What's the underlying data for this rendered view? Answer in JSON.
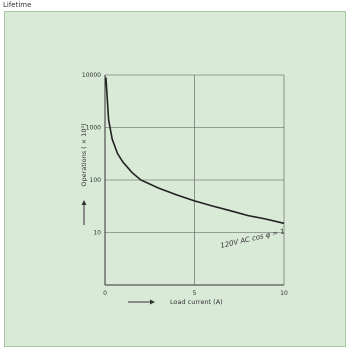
{
  "header": {
    "corner_label": "Lifetime"
  },
  "chart_data": {
    "type": "line",
    "xlabel": "Load current  (A)",
    "ylabel": "Operations  ( × 10³)",
    "annotation": "120V  AC  cos  φ = 1",
    "xlim": [
      0,
      10
    ],
    "ylim": [
      1,
      10000
    ],
    "yscale": "log",
    "grid": true,
    "x_ticks": [
      "0",
      "5",
      "10"
    ],
    "y_ticks": [
      "10",
      "100",
      "1000",
      "10000"
    ],
    "series": [
      {
        "x": [
          0.05,
          0.2,
          0.4,
          0.7,
          1,
          1.5,
          2,
          3,
          4,
          5,
          6,
          7,
          8,
          9,
          10
        ],
        "y": [
          9000,
          1400,
          600,
          320,
          220,
          140,
          100,
          70,
          52,
          40,
          32,
          26,
          21,
          18,
          15
        ]
      }
    ]
  },
  "colors": {
    "background": "#d9ead7",
    "line": "#222222",
    "grid": "#555555"
  }
}
